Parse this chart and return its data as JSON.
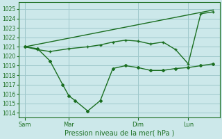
{
  "xlabel": "Pression niveau de la mer( hPa )",
  "bg_color": "#cce8ea",
  "grid_color": "#9ec8cb",
  "line_color": "#1a6e20",
  "ylim": [
    1013.5,
    1025.7
  ],
  "yticks": [
    1014,
    1015,
    1016,
    1017,
    1018,
    1019,
    1020,
    1021,
    1022,
    1023,
    1024,
    1025
  ],
  "xtick_labels": [
    "Sam",
    "Mar",
    "Dim",
    "Lun"
  ],
  "xtick_positions": [
    0,
    3.5,
    9,
    13
  ],
  "xlim": [
    -0.5,
    15.5
  ],
  "series_trend": {
    "x": [
      0,
      15
    ],
    "y": [
      1021.0,
      1024.9
    ]
  },
  "series_diamond": {
    "x": [
      0,
      1,
      2,
      3,
      3.5,
      4,
      5,
      6,
      7,
      8,
      9,
      10,
      11,
      12,
      13,
      14,
      15
    ],
    "y": [
      1021.0,
      1020.8,
      1019.5,
      1017.0,
      1015.8,
      1015.3,
      1014.2,
      1015.3,
      1018.7,
      1019.0,
      1018.8,
      1018.5,
      1018.5,
      1018.7,
      1018.8,
      1019.0,
      1019.2
    ]
  },
  "series_plus": {
    "x": [
      0,
      1,
      2,
      3.5,
      5,
      6,
      7,
      8,
      9,
      10,
      11,
      12,
      13,
      14,
      15
    ],
    "y": [
      1021.0,
      1020.7,
      1020.5,
      1020.8,
      1021.0,
      1021.2,
      1021.5,
      1021.7,
      1021.6,
      1021.3,
      1021.5,
      1020.7,
      1019.2,
      1024.5,
      1024.7
    ]
  }
}
